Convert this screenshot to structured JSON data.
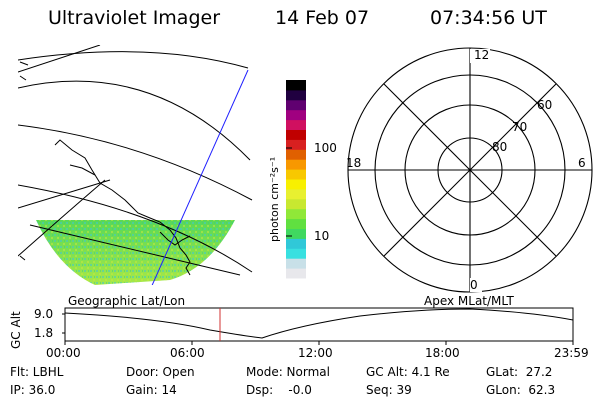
{
  "header": {
    "instrument": "Ultraviolet Imager",
    "date": "14 Feb 07",
    "time": "07:34:56 UT"
  },
  "colorbar": {
    "label": "photon cm⁻²s⁻¹",
    "ticks": [
      "100",
      "10"
    ],
    "colors": [
      "#e8e8ec",
      "#c8e0e8",
      "#38e0e0",
      "#30c8d8",
      "#40d860",
      "#60e040",
      "#90e838",
      "#c8e830",
      "#e8f030",
      "#f8f000",
      "#f8c800",
      "#f89800",
      "#e06000",
      "#d82020",
      "#c00000",
      "#d01060",
      "#a00080",
      "#600070",
      "#200040",
      "#000000"
    ]
  },
  "polar": {
    "mlt_labels": [
      "12",
      "18",
      "6",
      "0"
    ],
    "lat_labels": [
      "60",
      "70",
      "80"
    ]
  },
  "strip": {
    "left_title": "Geographic Lat/Lon",
    "right_title": "Apex MLat/MLT",
    "axis_label": "GC Alt",
    "y_ticks": [
      "9.0",
      "1.8"
    ],
    "x_ticks": [
      "00:00",
      "06:00",
      "12:00",
      "18:00",
      "23:59"
    ],
    "current_marker_color": "#d03030"
  },
  "status": {
    "flt_label": "Flt: LBHL",
    "ip_label": "IP: 36.0",
    "door_label": "Door: Open",
    "gain_label": "Gain: 14",
    "mode_label": "Mode: Normal",
    "dsp_label": "Dsp:    -0.0",
    "gcalt_label": "GC Alt: 4.1 Re",
    "seq_label": "Seq: 39",
    "glat_label": "GLat:  27.2",
    "glon_label": "GLon:  62.3"
  }
}
